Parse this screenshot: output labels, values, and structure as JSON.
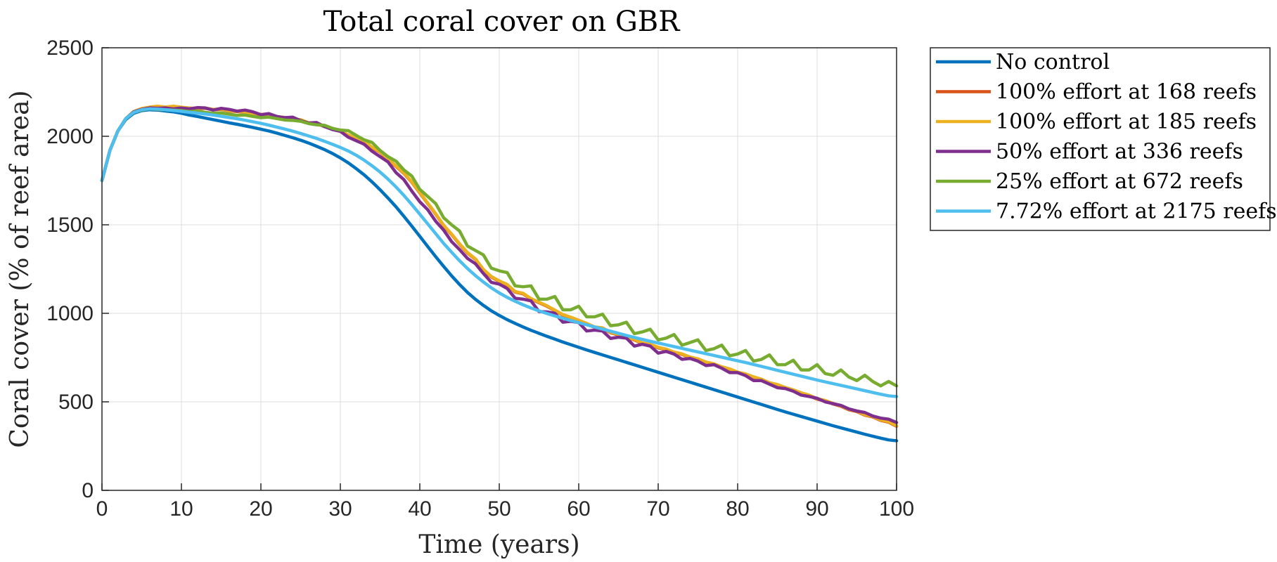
{
  "chart_data": {
    "type": "line",
    "title": "Total coral cover on GBR",
    "xlabel": "Time (years)",
    "ylabel": "Coral cover (% of reef area)",
    "xlim": [
      0,
      100
    ],
    "ylim": [
      0,
      2500
    ],
    "xticks": [
      0,
      10,
      20,
      30,
      40,
      50,
      60,
      70,
      80,
      90,
      100
    ],
    "yticks": [
      0,
      500,
      1000,
      1500,
      2000,
      2500
    ],
    "grid": true,
    "legend_position": "outside-right-top",
    "x": [
      0,
      1,
      2,
      3,
      4,
      5,
      6,
      7,
      8,
      9,
      10,
      11,
      12,
      13,
      14,
      15,
      16,
      17,
      18,
      19,
      20,
      21,
      22,
      23,
      24,
      25,
      26,
      27,
      28,
      29,
      30,
      31,
      32,
      33,
      34,
      35,
      36,
      37,
      38,
      39,
      40,
      41,
      42,
      43,
      44,
      45,
      46,
      47,
      48,
      49,
      50,
      51,
      52,
      53,
      54,
      55,
      56,
      57,
      58,
      59,
      60,
      61,
      62,
      63,
      64,
      65,
      66,
      67,
      68,
      69,
      70,
      71,
      72,
      73,
      74,
      75,
      76,
      77,
      78,
      79,
      80,
      81,
      82,
      83,
      84,
      85,
      86,
      87,
      88,
      89,
      90,
      91,
      92,
      93,
      94,
      95,
      96,
      97,
      98,
      99,
      100
    ],
    "series": [
      {
        "name": "No control",
        "color": "#0072BD",
        "values": [
          1750,
          1920,
          2030,
          2095,
          2130,
          2145,
          2150,
          2148,
          2143,
          2138,
          2130,
          2120,
          2112,
          2103,
          2094,
          2085,
          2076,
          2068,
          2059,
          2050,
          2040,
          2030,
          2018,
          2005,
          1992,
          1978,
          1962,
          1944,
          1925,
          1903,
          1878,
          1850,
          1817,
          1782,
          1742,
          1698,
          1651,
          1602,
          1548,
          1492,
          1435,
          1377,
          1320,
          1265,
          1212,
          1163,
          1118,
          1079,
          1045,
          1014,
          988,
          964,
          943,
          923,
          904,
          887,
          870,
          854,
          838,
          823,
          808,
          793,
          779,
          765,
          751,
          737,
          723,
          709,
          695,
          681,
          667,
          653,
          639,
          625,
          611,
          597,
          583,
          569,
          555,
          541,
          527,
          513,
          499,
          485,
          471,
          457,
          443,
          430,
          417,
          404,
          391,
          378,
          365,
          353,
          341,
          329,
          317,
          306,
          295,
          285,
          280
        ]
      },
      {
        "name": "100% effort at 168 reefs",
        "color": "#D95319",
        "values": [
          1750,
          1920,
          2030,
          2100,
          2138,
          2155,
          2163,
          2168,
          2163,
          2168,
          2162,
          2158,
          2155,
          2158,
          2150,
          2152,
          2143,
          2140,
          2135,
          2128,
          2122,
          2120,
          2108,
          2105,
          2096,
          2092,
          2075,
          2072,
          2055,
          2042,
          2030,
          2005,
          1985,
          1970,
          1935,
          1910,
          1870,
          1830,
          1790,
          1740,
          1680,
          1620,
          1560,
          1495,
          1445,
          1390,
          1340,
          1305,
          1245,
          1205,
          1180,
          1160,
          1120,
          1110,
          1080,
          1060,
          1040,
          1015,
          990,
          975,
          958,
          940,
          920,
          915,
          890,
          878,
          860,
          850,
          830,
          822,
          805,
          795,
          778,
          768,
          750,
          740,
          722,
          712,
          695,
          683,
          665,
          655,
          638,
          625,
          605,
          595,
          578,
          565,
          548,
          535,
          515,
          505,
          488,
          475,
          455,
          445,
          425,
          415,
          395,
          385,
          362
        ]
      },
      {
        "name": "100% effort at 185 reefs",
        "color": "#EDB120",
        "values": [
          1750,
          1920,
          2030,
          2100,
          2140,
          2157,
          2165,
          2170,
          2165,
          2170,
          2164,
          2160,
          2157,
          2160,
          2152,
          2154,
          2145,
          2142,
          2137,
          2130,
          2124,
          2122,
          2110,
          2107,
          2098,
          2094,
          2077,
          2074,
          2057,
          2044,
          2032,
          2008,
          1988,
          1973,
          1938,
          1913,
          1873,
          1833,
          1793,
          1743,
          1683,
          1623,
          1563,
          1498,
          1448,
          1393,
          1343,
          1308,
          1248,
          1208,
          1183,
          1163,
          1123,
          1113,
          1083,
          1063,
          1043,
          1018,
          993,
          978,
          961,
          943,
          923,
          918,
          893,
          881,
          863,
          853,
          833,
          825,
          808,
          798,
          781,
          771,
          753,
          743,
          725,
          715,
          698,
          686,
          668,
          658,
          641,
          628,
          608,
          598,
          581,
          568,
          551,
          538,
          518,
          508,
          491,
          478,
          458,
          448,
          428,
          418,
          398,
          388,
          365
        ]
      },
      {
        "name": "50% effort at 336 reefs",
        "color": "#7E2F8E",
        "values": [
          1750,
          1920,
          2030,
          2100,
          2138,
          2152,
          2160,
          2158,
          2160,
          2155,
          2160,
          2155,
          2162,
          2160,
          2148,
          2158,
          2152,
          2142,
          2148,
          2138,
          2122,
          2128,
          2112,
          2105,
          2108,
          2088,
          2075,
          2078,
          2055,
          2038,
          2028,
          1995,
          1975,
          1955,
          1915,
          1885,
          1855,
          1795,
          1755,
          1690,
          1630,
          1585,
          1520,
          1470,
          1405,
          1360,
          1310,
          1280,
          1225,
          1175,
          1165,
          1140,
          1085,
          1080,
          1070,
          1010,
          1008,
          1000,
          950,
          955,
          948,
          900,
          905,
          900,
          858,
          865,
          860,
          815,
          825,
          815,
          775,
          785,
          770,
          740,
          745,
          730,
          705,
          710,
          690,
          665,
          665,
          648,
          620,
          620,
          600,
          580,
          575,
          560,
          538,
          530,
          520,
          500,
          490,
          480,
          460,
          448,
          440,
          420,
          408,
          402,
          383
        ]
      },
      {
        "name": "25% effort at 672 reefs",
        "color": "#77AC30",
        "values": [
          1750,
          1920,
          2030,
          2100,
          2135,
          2148,
          2155,
          2152,
          2150,
          2148,
          2145,
          2140,
          2142,
          2135,
          2130,
          2132,
          2125,
          2118,
          2120,
          2112,
          2105,
          2108,
          2100,
          2092,
          2090,
          2085,
          2072,
          2065,
          2062,
          2045,
          2035,
          2032,
          2005,
          1980,
          1965,
          1920,
          1885,
          1860,
          1810,
          1775,
          1700,
          1660,
          1620,
          1540,
          1500,
          1465,
          1380,
          1355,
          1330,
          1255,
          1240,
          1230,
          1155,
          1150,
          1155,
          1080,
          1080,
          1095,
          1020,
          1020,
          1040,
          980,
          980,
          995,
          930,
          935,
          950,
          885,
          895,
          910,
          850,
          860,
          880,
          820,
          835,
          850,
          790,
          800,
          820,
          760,
          770,
          790,
          730,
          740,
          765,
          710,
          710,
          735,
          680,
          680,
          710,
          660,
          650,
          680,
          640,
          620,
          650,
          615,
          590,
          615,
          590
        ]
      },
      {
        "name": "7.72% effort at 2175 reefs",
        "color": "#4DBEEE",
        "values": [
          1750,
          1920,
          2030,
          2100,
          2135,
          2150,
          2155,
          2154,
          2150,
          2146,
          2141,
          2136,
          2131,
          2126,
          2120,
          2113,
          2106,
          2099,
          2091,
          2082,
          2073,
          2063,
          2052,
          2041,
          2029,
          2016,
          2002,
          1988,
          1972,
          1955,
          1937,
          1917,
          1893,
          1865,
          1833,
          1798,
          1758,
          1714,
          1666,
          1614,
          1560,
          1505,
          1450,
          1395,
          1345,
          1297,
          1253,
          1213,
          1177,
          1144,
          1115,
          1090,
          1068,
          1048,
          1030,
          1014,
          999,
          985,
          972,
          959,
          947,
          935,
          923,
          911,
          899,
          887,
          875,
          864,
          853,
          842,
          832,
          822,
          812,
          802,
          792,
          782,
          772,
          762,
          752,
          742,
          732,
          722,
          711,
          700,
          689,
          678,
          667,
          656,
          645,
          634,
          623,
          613,
          603,
          593,
          583,
          573,
          563,
          553,
          543,
          534,
          530
        ]
      }
    ]
  }
}
